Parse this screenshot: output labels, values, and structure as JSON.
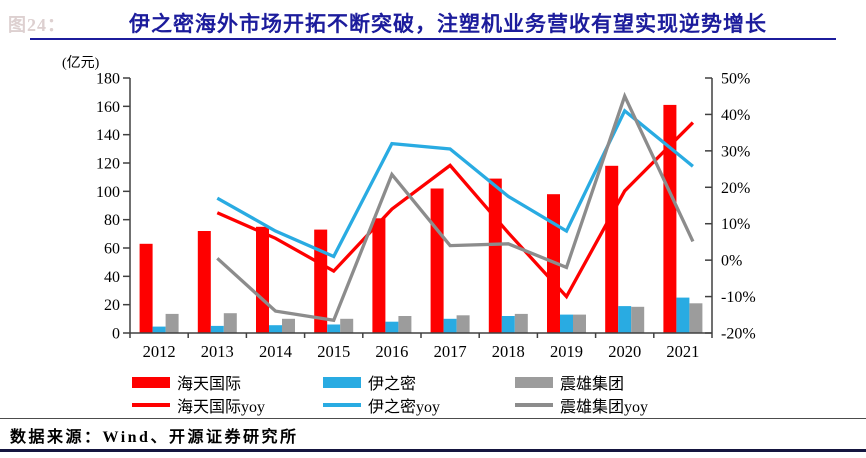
{
  "theme": {
    "accent": "#1C1C9C",
    "axis_color": "#404040",
    "text_color": "#000000"
  },
  "header": {
    "figure_label": "图24：",
    "title": "伊之密海外市场开拓不断突破，注塑机业务营收有望实现逆势增长"
  },
  "footer": {
    "source": "数据来源：Wind、开源证券研究所"
  },
  "chart_data": {
    "type": "bar+line",
    "title": "伊之密海外市场开拓不断突破，注塑机业务营收有望实现逆势增长",
    "unit_label": "(亿元)",
    "categories": [
      "2012",
      "2013",
      "2014",
      "2015",
      "2016",
      "2017",
      "2018",
      "2019",
      "2020",
      "2021"
    ],
    "left_axis": {
      "label": "(亿元)",
      "min": 0,
      "max": 180,
      "step": 20
    },
    "right_axis": {
      "min": -20,
      "max": 50,
      "step": 10,
      "format": "percent"
    },
    "grid": false,
    "legend_position": "bottom",
    "bar_series": [
      {
        "name": "海天国际",
        "color": "#FE0000",
        "values": [
          63,
          72,
          75,
          73,
          81,
          102,
          109,
          98,
          118,
          161
        ]
      },
      {
        "name": "伊之密",
        "color": "#29ABE2",
        "values": [
          4.5,
          5,
          5.5,
          6,
          8,
          10,
          12,
          13,
          19,
          25
        ]
      },
      {
        "name": "震雄集团",
        "color": "#9C9C9C",
        "values": [
          13.5,
          14,
          10,
          10,
          12,
          12.5,
          13.5,
          13,
          18.5,
          21
        ]
      }
    ],
    "line_series": [
      {
        "name": "海天国际yoy",
        "color": "#FE0000",
        "values": [
          null,
          13,
          6,
          -3,
          14,
          26,
          7.5,
          -10,
          19,
          35
        ]
      },
      {
        "name": "伊之密yoy",
        "color": "#29ABE2",
        "values": [
          null,
          17,
          8,
          1,
          32,
          30.5,
          17.5,
          8,
          41,
          28
        ]
      },
      {
        "name": "震雄集团yoy",
        "color": "#8C8C8C",
        "values": [
          null,
          0.5,
          -14,
          -16.5,
          23.5,
          4,
          4.5,
          -2,
          45,
          11
        ]
      }
    ]
  }
}
